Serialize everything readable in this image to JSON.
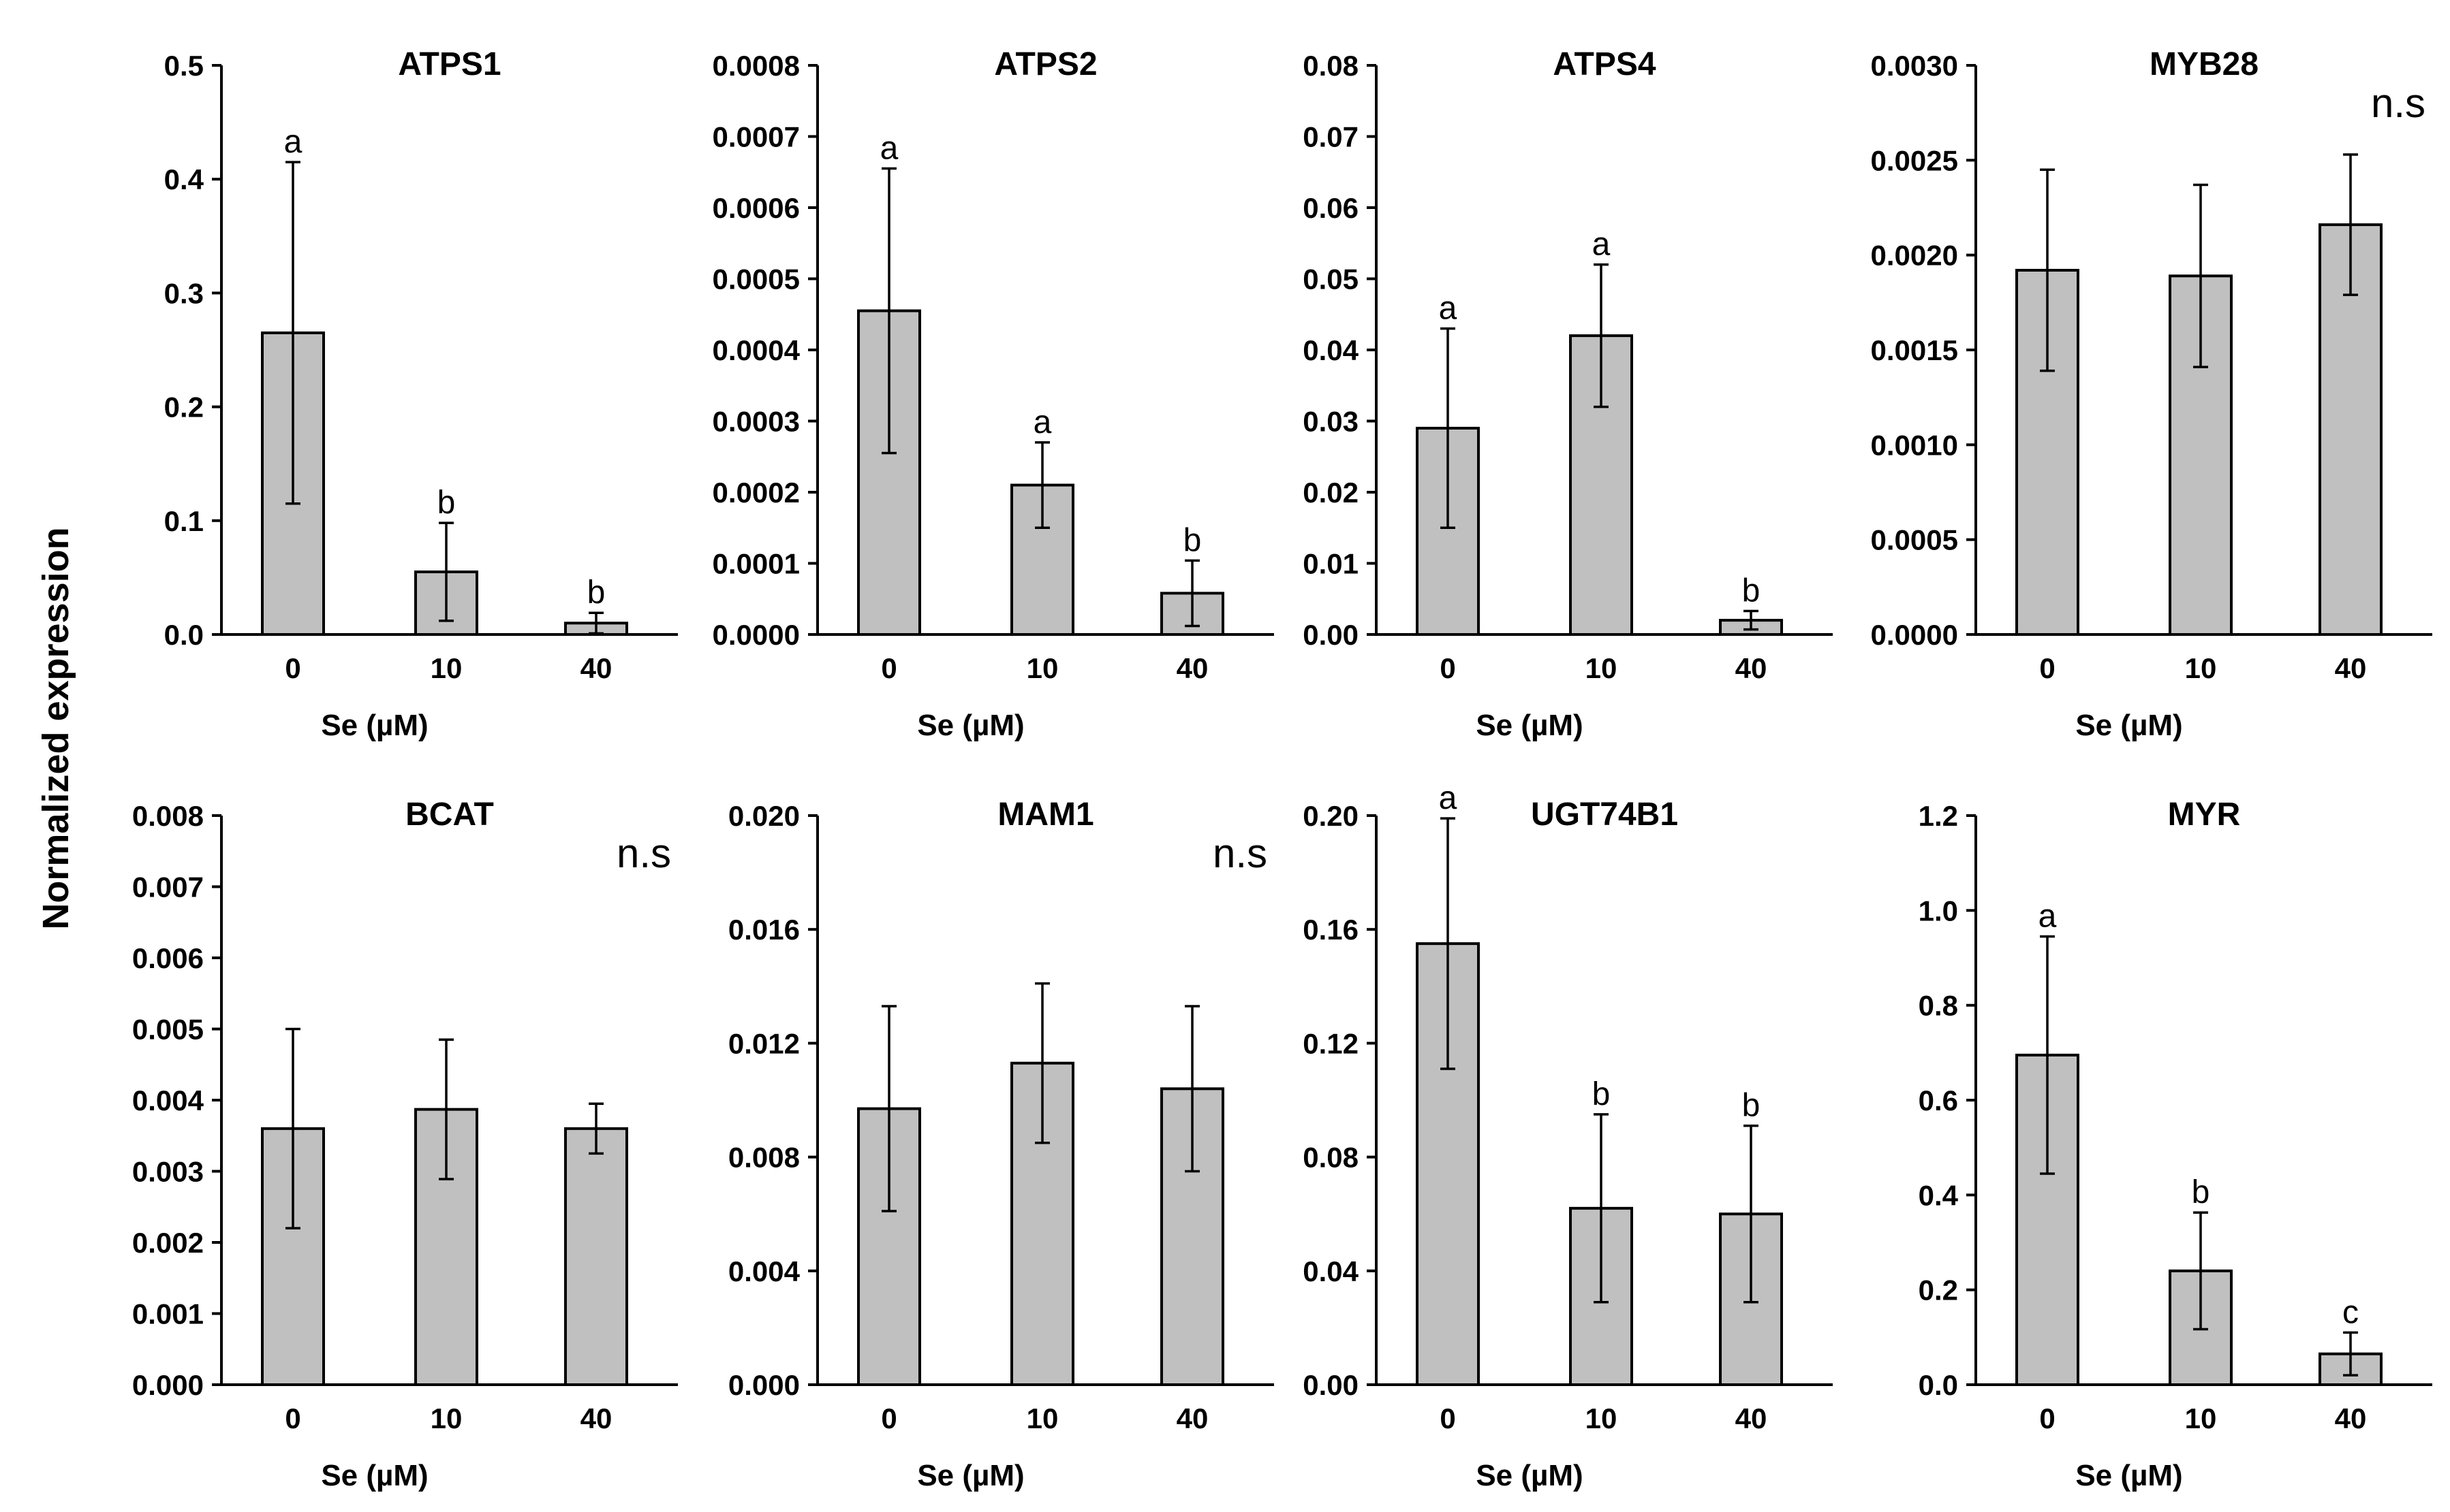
{
  "figure": {
    "ylabel": "Normalized expression"
  },
  "colors": {
    "bar_fill": "#c0c0c0",
    "bar_stroke": "#000000",
    "axis": "#000000"
  },
  "chart_data": [
    {
      "type": "bar",
      "title": "ATPS1",
      "xlabel": "Se (µM)",
      "ylabel": "Normalized expression",
      "categories": [
        "0",
        "10",
        "40"
      ],
      "values": [
        0.265,
        0.055,
        0.01
      ],
      "errors": [
        0.15,
        0.043,
        0.009
      ],
      "letters": [
        "a",
        "b",
        "b"
      ],
      "ns": "",
      "ylim": [
        0,
        0.5
      ],
      "yticks": [
        "0.0",
        "0.1",
        "0.2",
        "0.3",
        "0.4",
        "0.5"
      ]
    },
    {
      "type": "bar",
      "title": "ATPS2",
      "xlabel": "Se (µM)",
      "ylabel": "Normalized expression",
      "categories": [
        "0",
        "10",
        "40"
      ],
      "values": [
        0.000455,
        0.00021,
        5.8e-05
      ],
      "errors": [
        0.0002,
        6e-05,
        4.6e-05
      ],
      "letters": [
        "a",
        "a",
        "b"
      ],
      "ns": "",
      "ylim": [
        0,
        0.0008
      ],
      "yticks": [
        "0.0000",
        "0.0001",
        "0.0002",
        "0.0003",
        "0.0004",
        "0.0005",
        "0.0006",
        "0.0007",
        "0.0008"
      ]
    },
    {
      "type": "bar",
      "title": "ATPS4",
      "xlabel": "Se (µM)",
      "ylabel": "Normalized expression",
      "categories": [
        "0",
        "10",
        "40"
      ],
      "values": [
        0.029,
        0.042,
        0.002
      ],
      "errors": [
        0.014,
        0.01,
        0.0013
      ],
      "letters": [
        "a",
        "a",
        "b"
      ],
      "ns": "",
      "ylim": [
        0,
        0.08
      ],
      "yticks": [
        "0.00",
        "0.01",
        "0.02",
        "0.03",
        "0.04",
        "0.05",
        "0.06",
        "0.07",
        "0.08"
      ]
    },
    {
      "type": "bar",
      "title": "MYB28",
      "xlabel": "Se (µM)",
      "ylabel": "Normalized expression",
      "categories": [
        "0",
        "10",
        "40"
      ],
      "values": [
        0.00192,
        0.00189,
        0.00216
      ],
      "errors": [
        0.00053,
        0.00048,
        0.00037
      ],
      "letters": [
        "",
        "",
        ""
      ],
      "ns": "n.s",
      "ylim": [
        0,
        0.003
      ],
      "yticks": [
        "0.0000",
        "0.0005",
        "0.0010",
        "0.0015",
        "0.0020",
        "0.0025",
        "0.0030"
      ]
    },
    {
      "type": "bar",
      "title": "BCAT",
      "xlabel": "Se (µM)",
      "ylabel": "Normalized expression",
      "categories": [
        "0",
        "10",
        "40"
      ],
      "values": [
        0.0036,
        0.00387,
        0.0036
      ],
      "errors": [
        0.0014,
        0.00098,
        0.00035
      ],
      "letters": [
        "",
        "",
        ""
      ],
      "ns": "n.s",
      "ylim": [
        0,
        0.008
      ],
      "yticks": [
        "0.000",
        "0.001",
        "0.002",
        "0.003",
        "0.004",
        "0.005",
        "0.006",
        "0.007",
        "0.008"
      ]
    },
    {
      "type": "bar",
      "title": "MAM1",
      "xlabel": "Se (µM)",
      "ylabel": "Normalized expression",
      "categories": [
        "0",
        "10",
        "40"
      ],
      "values": [
        0.0097,
        0.0113,
        0.0104
      ],
      "errors": [
        0.0036,
        0.0028,
        0.0029
      ],
      "letters": [
        "",
        "",
        ""
      ],
      "ns": "n.s",
      "ylim": [
        0,
        0.02
      ],
      "yticks": [
        "0.000",
        "0.004",
        "0.008",
        "0.012",
        "0.016",
        "0.020"
      ]
    },
    {
      "type": "bar",
      "title": "UGT74B1",
      "xlabel": "Se (µM)",
      "ylabel": "Normalized expression",
      "categories": [
        "0",
        "10",
        "40"
      ],
      "values": [
        0.155,
        0.062,
        0.06
      ],
      "errors": [
        0.044,
        0.033,
        0.031
      ],
      "letters": [
        "a",
        "b",
        "b"
      ],
      "ns": "",
      "ylim": [
        0,
        0.2
      ],
      "yticks": [
        "0.00",
        "0.04",
        "0.08",
        "0.12",
        "0.16",
        "0.20"
      ]
    },
    {
      "type": "bar",
      "title": "MYR",
      "xlabel": "Se (µM)",
      "ylabel": "Normalized expression",
      "categories": [
        "0",
        "10",
        "40"
      ],
      "values": [
        0.695,
        0.24,
        0.065
      ],
      "errors": [
        0.25,
        0.123,
        0.045
      ],
      "letters": [
        "a",
        "b",
        "c"
      ],
      "ns": "",
      "ylim": [
        0,
        1.2
      ],
      "yticks": [
        "0.0",
        "0.2",
        "0.4",
        "0.6",
        "0.8",
        "1.0",
        "1.2"
      ]
    }
  ]
}
